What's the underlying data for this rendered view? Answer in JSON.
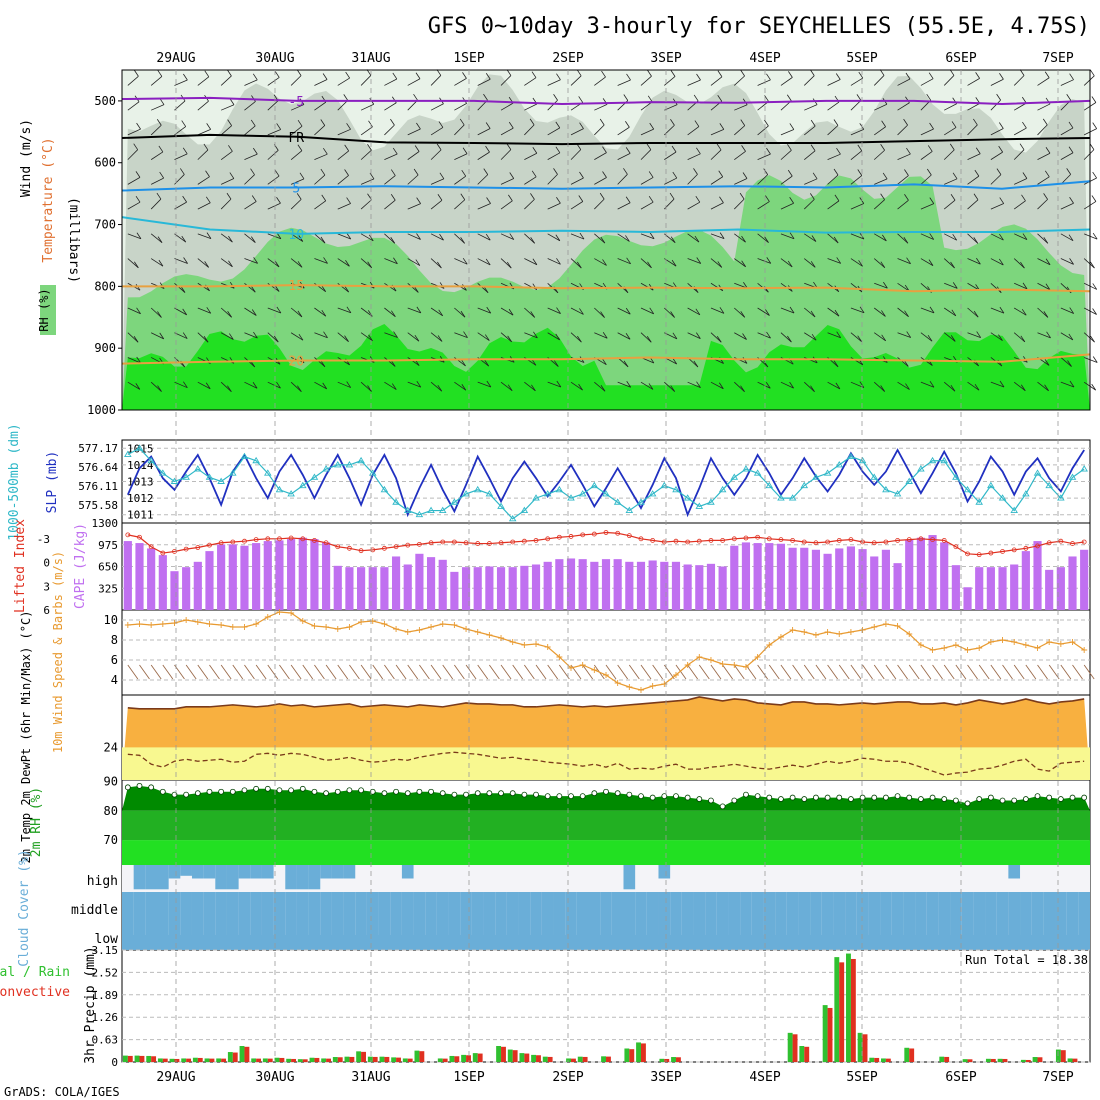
{
  "title": "GFS 0~10day 3-hourly for SEYCHELLES (55.5E, 4.75S)",
  "credit": "GrADS: COLA/IGES",
  "dates": [
    "29AUG",
    "30AUG",
    "31AUG",
    "1SEP",
    "2SEP",
    "3SEP",
    "4SEP",
    "5SEP",
    "6SEP",
    "7SEP"
  ],
  "colors": {
    "rh_light": "#e8f2e8",
    "rh_mid": "#c8d4c8",
    "rh_green": "#7dd67d",
    "rh_bright": "#22e022",
    "purple": "#8a1fc0",
    "blue": "#1e90e8",
    "cyan": "#28b8d8",
    "orange": "#e8a040",
    "slp": "#2030c0",
    "thick": "#30b8c8",
    "cape": "#c070f0",
    "li": "#e03020",
    "wind": "#e89a30",
    "barb": "#9a6a4a",
    "temp_fill": "#f8b040",
    "dew_fill": "#f8f890",
    "rh2m_line": "#007000",
    "cloud": "#6aaed8",
    "precip_total": "#30c030",
    "precip_conv": "#e03020"
  },
  "chart_data": [
    {
      "type": "heatmap",
      "name": "upper-air cross section",
      "ylabel": "(millibars)",
      "legend_labels": [
        "RH (%)",
        "Temperature (°C)",
        "Wind (m/s)"
      ],
      "yticks": [
        500,
        600,
        700,
        800,
        900,
        1000
      ],
      "ylim": [
        450,
        1000
      ],
      "isotherm_labels": [
        "-5",
        "FR",
        "5",
        "10",
        "15",
        "20"
      ],
      "isotherms": [
        {
          "label": "-5",
          "pressure": [
            497,
            495,
            500,
            500,
            500,
            505,
            502,
            503,
            500,
            500,
            505,
            500
          ]
        },
        {
          "label": "FR",
          "pressure": [
            560,
            555,
            558,
            567,
            568,
            570,
            568,
            568,
            568,
            565,
            562,
            560
          ]
        },
        {
          "label": "5",
          "pressure": [
            645,
            640,
            640,
            638,
            640,
            642,
            640,
            638,
            640,
            635,
            642,
            630
          ]
        },
        {
          "label": "10",
          "pressure": [
            688,
            708,
            715,
            712,
            712,
            710,
            712,
            708,
            713,
            712,
            712,
            708
          ]
        },
        {
          "label": "15",
          "pressure": [
            800,
            800,
            798,
            800,
            800,
            803,
            802,
            803,
            802,
            808,
            805,
            808
          ]
        },
        {
          "label": "20",
          "pressure": [
            925,
            922,
            920,
            920,
            918,
            918,
            915,
            918,
            918,
            920,
            922,
            910
          ]
        }
      ]
    },
    {
      "type": "line",
      "name": "slp and thickness",
      "ylabel_left": "1000-500mb (dm)",
      "ylabel_right": "SLP (mb)",
      "left_ticks": [
        "577.17",
        "576.64",
        "576.11",
        "575.58"
      ],
      "right_ticks": [
        "1015",
        "1014",
        "1013",
        "1012",
        "1011"
      ],
      "slp_range": [
        1010.5,
        1015.5
      ],
      "slp": [
        1012.2,
        1013.8,
        1014.5,
        1013.2,
        1012.5,
        1013.6,
        1014.6,
        1013.2,
        1011.6,
        1013.6,
        1014.6,
        1013.2,
        1012,
        1013.6,
        1014.6,
        1013.4,
        1012,
        1013.4,
        1014.6,
        1013.2,
        1011.6,
        1013.4,
        1014.6,
        1013.2,
        1011,
        1012.6,
        1014,
        1012.5,
        1011.2,
        1012.8,
        1014.5,
        1013.2,
        1011.8,
        1013.2,
        1014.2,
        1013.2,
        1012.1,
        1013,
        1014,
        1012.8,
        1011.5,
        1012.6,
        1013.8,
        1012.6,
        1011.4,
        1012.8,
        1014.4,
        1013.2,
        1011,
        1012.6,
        1014.4,
        1013.2,
        1012.2,
        1013.2,
        1014.6,
        1013.5,
        1012.2,
        1013.2,
        1014.4,
        1013.3,
        1012.4,
        1013.4,
        1014.7,
        1013.6,
        1012.8,
        1013.6,
        1014.9,
        1013.6,
        1012.3,
        1013.5,
        1014.8,
        1013.5,
        1011.8,
        1013,
        1014.5,
        1013.6,
        1012.2,
        1013.6,
        1014.4,
        1013.2,
        1012.4,
        1013.8,
        1014.9
      ],
      "thickness": [
        576.95,
        577.1,
        576.8,
        576.5,
        576.3,
        576.4,
        576.6,
        576.4,
        576.3,
        576.5,
        576.9,
        576.8,
        576.5,
        576.1,
        576.0,
        576.2,
        576.4,
        576.6,
        576.7,
        576.7,
        576.8,
        576.5,
        576.1,
        575.8,
        575.6,
        575.5,
        575.6,
        575.6,
        575.8,
        576.0,
        576.1,
        576.0,
        575.7,
        575.4,
        575.6,
        575.9,
        576.0,
        576.1,
        575.9,
        576.0,
        576.2,
        576.0,
        575.8,
        575.6,
        575.8,
        576.0,
        576.2,
        576.1,
        575.9,
        575.7,
        575.8,
        576.1,
        576.4,
        576.6,
        576.5,
        576.2,
        575.9,
        575.9,
        576.2,
        576.4,
        576.5,
        576.7,
        576.9,
        576.8,
        576.4,
        576.1,
        576.0,
        576.3,
        576.6,
        576.8,
        576.8,
        576.4,
        576.1,
        575.8,
        576.2,
        575.9,
        575.6,
        576.0,
        576.5,
        576.2,
        575.9,
        576.4,
        576.6
      ]
    },
    {
      "type": "bar",
      "name": "cape and lifted index",
      "ylabel_left": "Lifted Index",
      "ylabel_right": "CAPE (J/kg)",
      "left_ticks": [
        "-3",
        "0",
        "3",
        "6"
      ],
      "right_ticks": [
        "1300",
        "975",
        "650",
        "325"
      ],
      "cape_range": [
        0,
        1300
      ],
      "cape": [
        1030,
        1000,
        920,
        820,
        580,
        640,
        720,
        880,
        980,
        980,
        960,
        1000,
        1030,
        1040,
        1060,
        1080,
        1060,
        1010,
        660,
        640,
        640,
        640,
        640,
        800,
        680,
        840,
        790,
        750,
        570,
        640,
        640,
        650,
        640,
        640,
        660,
        680,
        720,
        760,
        770,
        760,
        720,
        760,
        760,
        720,
        720,
        740,
        720,
        720,
        680,
        670,
        690,
        650,
        960,
        1010,
        1000,
        1000,
        990,
        930,
        930,
        900,
        840,
        920,
        950,
        910,
        800,
        900,
        700,
        1050,
        1080,
        1120,
        1010,
        670,
        340,
        640,
        640,
        640,
        680,
        880,
        1030,
        600,
        640,
        800,
        900
      ],
      "li_range": [
        -5,
        6
      ],
      "li": [
        -3.5,
        -3.2,
        -2.0,
        -1.2,
        -1.4,
        -1.7,
        -1.9,
        -2.2,
        -2.5,
        -2.6,
        -2.7,
        -2.9,
        -3.0,
        -3.0,
        -3.1,
        -3.0,
        -2.8,
        -2.5,
        -2.0,
        -1.8,
        -1.5,
        -1.6,
        -1.8,
        -2.0,
        -2.2,
        -2.3,
        -2.5,
        -2.6,
        -2.6,
        -2.5,
        -2.4,
        -2.4,
        -2.5,
        -2.6,
        -2.7,
        -2.8,
        -3.0,
        -3.2,
        -3.3,
        -3.5,
        -3.6,
        -3.8,
        -3.7,
        -3.4,
        -3.0,
        -2.8,
        -2.6,
        -2.7,
        -2.6,
        -2.7,
        -2.8,
        -2.8,
        -3.0,
        -3.1,
        -3.2,
        -3.0,
        -2.9,
        -2.8,
        -2.6,
        -2.5,
        -2.6,
        -2.8,
        -2.9,
        -2.6,
        -2.5,
        -2.6,
        -2.8,
        -2.9,
        -3.0,
        -2.9,
        -2.8,
        -2.0,
        -1.1,
        -1.0,
        -1.2,
        -1.4,
        -1.6,
        -1.8,
        -2.1,
        -2.5,
        -2.7,
        -2.4,
        -2.6
      ]
    },
    {
      "type": "line",
      "name": "10m wind",
      "ylabel": "10m Wind Speed & Barbs (m/s)",
      "yticks": [
        4,
        6,
        8,
        10
      ],
      "ylim": [
        2.5,
        11
      ],
      "speed": [
        9.5,
        9.6,
        9.5,
        9.6,
        9.7,
        10.0,
        9.8,
        9.6,
        9.5,
        9.3,
        9.3,
        9.6,
        10.3,
        10.8,
        10.7,
        9.9,
        9.4,
        9.3,
        9.1,
        9.3,
        9.8,
        9.9,
        9.6,
        9.1,
        8.8,
        9.0,
        9.3,
        9.6,
        9.5,
        9.1,
        8.8,
        8.5,
        8.2,
        7.8,
        7.5,
        7.6,
        7.3,
        6.3,
        5.2,
        5.5,
        5.0,
        4.5,
        3.7,
        3.3,
        3.0,
        3.4,
        3.6,
        4.5,
        5.5,
        6.3,
        6.0,
        5.6,
        5.5,
        5.3,
        6.3,
        7.5,
        8.3,
        9.0,
        8.8,
        8.5,
        8.8,
        8.6,
        8.8,
        9.0,
        9.3,
        9.6,
        9.4,
        8.6,
        7.5,
        7.0,
        7.2,
        7.5,
        7.0,
        7.2,
        7.8,
        8.0,
        7.8,
        7.5,
        7.2,
        7.8,
        7.6,
        7.8,
        7.0
      ]
    },
    {
      "type": "area",
      "name": "2m temp and dewpoint",
      "ylabel": "2m Temp 2m DewPt (6hr Min/Max) (°C)",
      "yticks": [
        24
      ],
      "ylim": [
        20.7,
        29.3
      ],
      "temp": [
        28.0,
        27.9,
        27.9,
        27.9,
        27.9,
        28.1,
        28.1,
        28.1,
        28.2,
        28.3,
        28.2,
        28.1,
        28.2,
        28.4,
        28.2,
        28.3,
        28.1,
        28.2,
        28.3,
        28.4,
        28.1,
        28.2,
        28.3,
        28.2,
        28.1,
        28.3,
        28.2,
        28.1,
        28.3,
        28.5,
        28.4,
        28.4,
        28.3,
        28.3,
        28.1,
        28.1,
        28.2,
        28.3,
        28.2,
        28.1,
        28.2,
        28.1,
        28.2,
        28.3,
        28.4,
        28.5,
        28.6,
        28.7,
        28.8,
        29.1,
        28.9,
        28.7,
        28.9,
        28.8,
        28.5,
        28.4,
        28.3,
        28.6,
        28.6,
        28.4,
        28.4,
        28.3,
        28.4,
        28.5,
        28.4,
        28.5,
        28.6,
        28.6,
        28.4,
        28.4,
        28.5,
        28.3,
        28.5,
        28.8,
        28.6,
        28.4,
        28.6,
        28.9,
        28.6,
        28.4,
        28.6,
        28.7,
        28.9
      ],
      "dewpoint": [
        23.3,
        23.2,
        22.3,
        22.0,
        22.6,
        22.8,
        22.6,
        22.7,
        22.8,
        22.5,
        22.6,
        23.3,
        23.4,
        23.2,
        23.4,
        23.3,
        23.0,
        22.7,
        22.8,
        23.0,
        22.7,
        22.5,
        22.6,
        22.8,
        22.7,
        23.0,
        23.2,
        23.4,
        23.5,
        23.4,
        23.3,
        23.1,
        22.9,
        23.0,
        22.8,
        22.7,
        22.5,
        22.4,
        22.3,
        22.1,
        22.3,
        22.0,
        22.4,
        21.8,
        21.9,
        21.8,
        22.1,
        22.3,
        21.8,
        21.8,
        22.0,
        22.1,
        22.3,
        22.1,
        21.9,
        21.8,
        22.0,
        22.2,
        22.0,
        22.3,
        22.6,
        22.4,
        22.6,
        22.9,
        22.8,
        22.6,
        22.6,
        22.4,
        22.0,
        21.6,
        21.2,
        21.4,
        21.5,
        21.8,
        21.9,
        22.2,
        22.6,
        22.8,
        21.8,
        21.6,
        22.4,
        22.5,
        22.6
      ]
    },
    {
      "type": "area",
      "name": "2m relative humidity",
      "ylabel": "2m RH (%)",
      "yticks": [
        70,
        80,
        90
      ],
      "ylim": [
        61.5,
        90.5
      ],
      "rh": [
        88,
        88.5,
        88,
        86.5,
        85.5,
        85.5,
        86,
        86.5,
        86.5,
        86.5,
        87,
        87.5,
        87.5,
        87,
        87,
        87.5,
        86.5,
        86,
        86.5,
        87,
        87,
        86.5,
        86,
        86.5,
        86,
        86.5,
        86.5,
        86,
        85.5,
        85.5,
        86,
        86,
        86,
        86,
        85.5,
        85.5,
        85,
        85,
        85,
        85,
        86,
        86.5,
        86,
        85.5,
        85,
        84.5,
        85,
        85,
        84.5,
        84,
        83.5,
        81.5,
        83.5,
        85.5,
        85,
        84.5,
        84,
        84.5,
        84,
        84.5,
        84.5,
        84.5,
        84,
        84.5,
        84.5,
        84.5,
        85,
        84.5,
        84,
        84.5,
        84,
        83.5,
        82.5,
        84,
        84.5,
        83.5,
        83.5,
        84,
        85,
        84.5,
        84,
        84.5,
        84.5
      ]
    },
    {
      "type": "bar",
      "name": "cloud cover",
      "ylabel": "Cloud Cover (%)",
      "levels": [
        "high",
        "middle",
        "low"
      ],
      "high": [
        0,
        90,
        90,
        90,
        50,
        40,
        50,
        50,
        90,
        90,
        50,
        50,
        50,
        0,
        90,
        90,
        90,
        50,
        50,
        50,
        0,
        0,
        0,
        0,
        50,
        0,
        0,
        0,
        0,
        0,
        0,
        0,
        0,
        0,
        0,
        0,
        0,
        0,
        0,
        0,
        0,
        0,
        0,
        90,
        0,
        0,
        50,
        0,
        0,
        0,
        0,
        0,
        0,
        0,
        0,
        0,
        0,
        0,
        0,
        0,
        0,
        0,
        0,
        0,
        0,
        0,
        0,
        0,
        0,
        0,
        0,
        0,
        0,
        0,
        0,
        0,
        50,
        0,
        0,
        0,
        0,
        0,
        0
      ],
      "middle": [
        100,
        100,
        100,
        100,
        100,
        100,
        100,
        100,
        100,
        100,
        100,
        100,
        100,
        100,
        100,
        100,
        100,
        100,
        100,
        100,
        100,
        100,
        100,
        100,
        100,
        100,
        100,
        100,
        100,
        100,
        100,
        100,
        100,
        100,
        100,
        100,
        100,
        100,
        100,
        100,
        100,
        100,
        100,
        100,
        100,
        100,
        100,
        100,
        100,
        100,
        100,
        100,
        100,
        100,
        100,
        100,
        100,
        100,
        100,
        100,
        100,
        100,
        100,
        100,
        100,
        100,
        100,
        100,
        100,
        100,
        100,
        100,
        100,
        100,
        100,
        100,
        100,
        100,
        100,
        100,
        100,
        100,
        100
      ]
    },
    {
      "type": "bar",
      "name": "3hr precipitation",
      "ylabel": "3hr Precip (mm)",
      "legend": [
        "Total / Rain",
        "Convective"
      ],
      "run_total_label": "Run Total = 18.38",
      "yticks": [
        "0",
        "0.63",
        "1.26",
        "1.89",
        "2.52",
        "3.15"
      ],
      "ylim": [
        0,
        3.15
      ],
      "total": [
        0.18,
        0.18,
        0.17,
        0.1,
        0.09,
        0.1,
        0.12,
        0.1,
        0.1,
        0.28,
        0.45,
        0.1,
        0.1,
        0.12,
        0.09,
        0.08,
        0.12,
        0.1,
        0.14,
        0.15,
        0.3,
        0.15,
        0.15,
        0.13,
        0.1,
        0.32,
        0,
        0.1,
        0.17,
        0.2,
        0.25,
        0,
        0.45,
        0.35,
        0.25,
        0.2,
        0.15,
        0,
        0.1,
        0.15,
        0,
        0.16,
        0,
        0.38,
        0.55,
        0,
        0.09,
        0.14,
        0,
        0,
        0,
        0,
        0,
        0,
        0,
        0,
        0,
        0.82,
        0.45,
        0,
        1.6,
        2.95,
        3.05,
        0.82,
        0.12,
        0.1,
        0,
        0.4,
        0,
        0,
        0.15,
        0,
        0.08,
        0,
        0.09,
        0.09,
        0,
        0.06,
        0.14,
        0,
        0.35,
        0.1,
        0
      ]
    }
  ]
}
